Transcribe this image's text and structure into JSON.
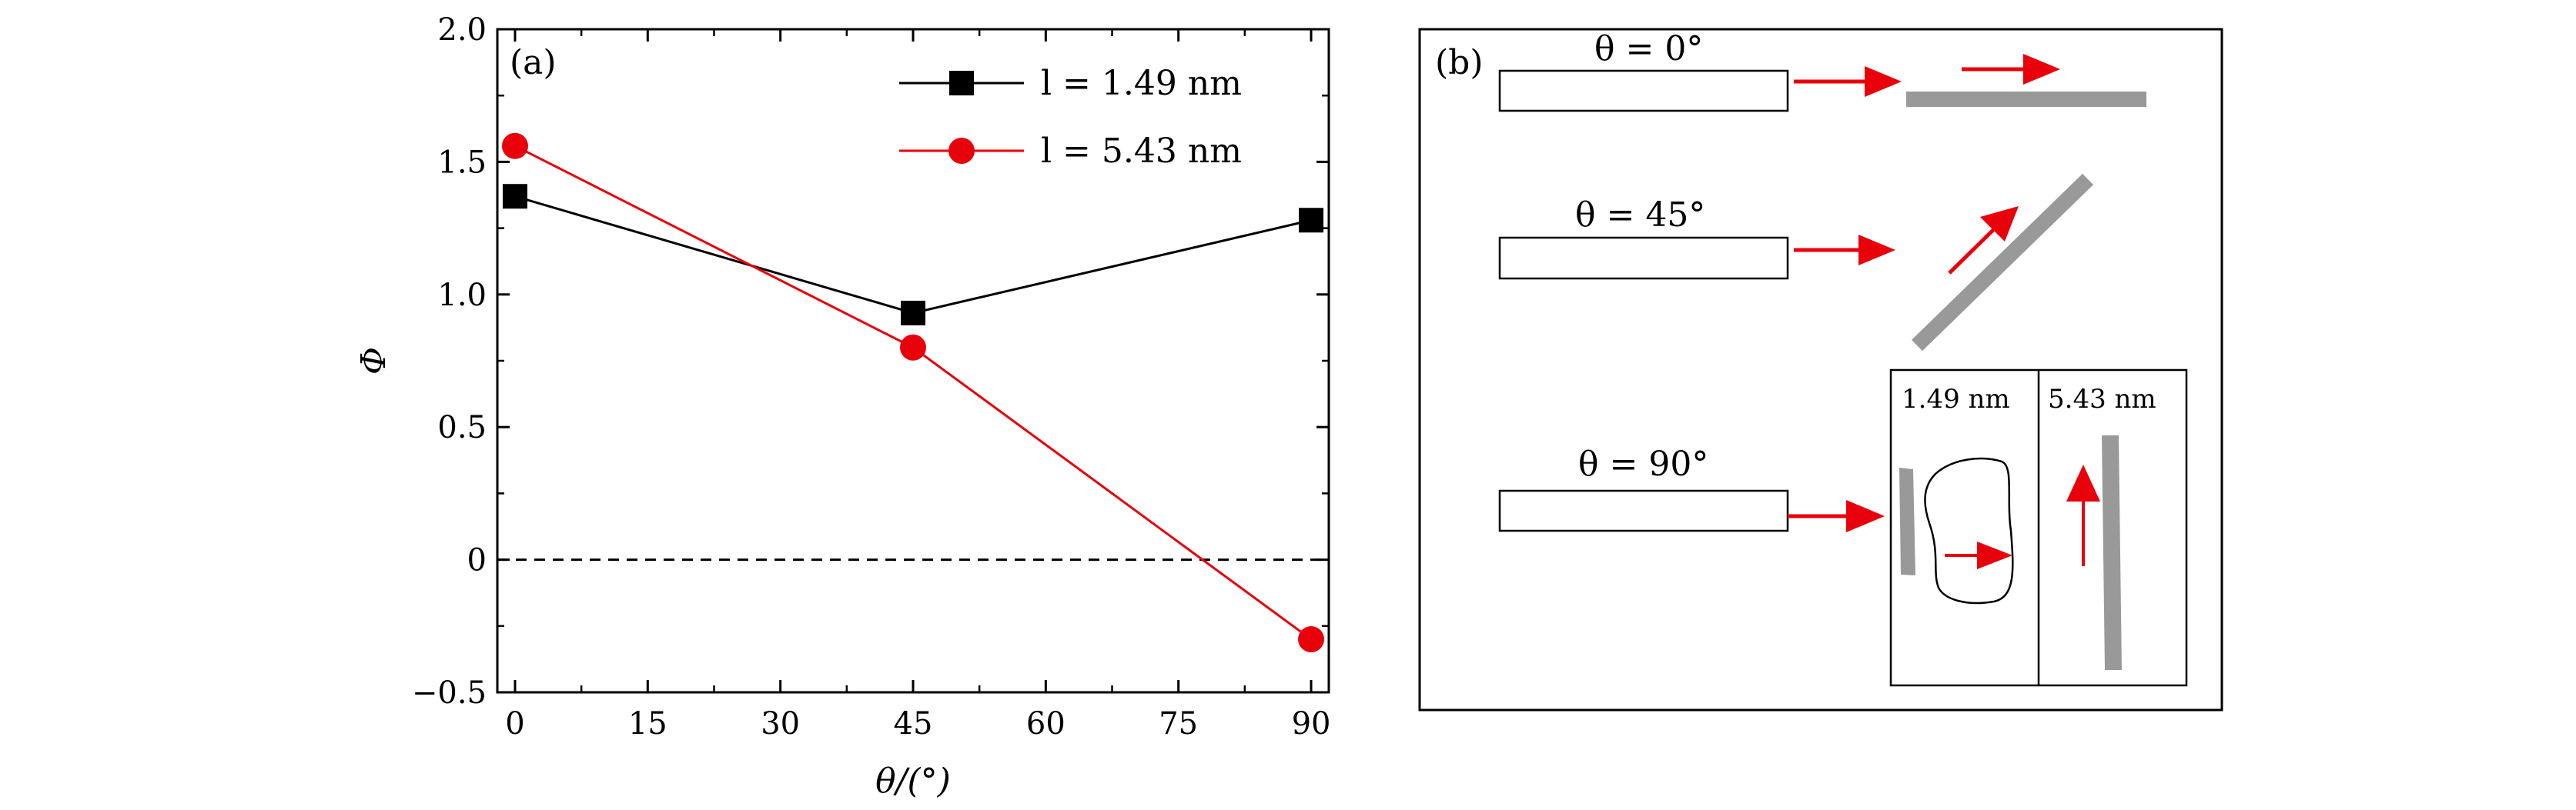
{
  "chart_data": [
    {
      "panel": "(a)",
      "type": "line",
      "x": [
        0,
        45,
        90
      ],
      "series": [
        {
          "name": "l = 1.49 nm",
          "marker": "square",
          "color": "#000000",
          "values": [
            1.37,
            0.93,
            1.28
          ]
        },
        {
          "name": "l = 5.43 nm",
          "marker": "circle",
          "color": "#e8000b",
          "values": [
            1.56,
            0.8,
            -0.3
          ]
        }
      ],
      "xlabel": "θ/(°)",
      "ylabel": "Φ",
      "xlim": [
        -2,
        92
      ],
      "ylim": [
        -0.5,
        2.0
      ],
      "xticks": [
        "0",
        "15",
        "30",
        "45",
        "60",
        "75",
        "90"
      ],
      "yticks": [
        "−0.5",
        "0",
        "0.5",
        "1.0",
        "1.5",
        "2.0"
      ],
      "reference_line": {
        "y": 0,
        "style": "dashed"
      },
      "legend": "top-right",
      "grid": false
    }
  ],
  "panel_b": {
    "label": "(b)",
    "rows": [
      {
        "theta_label": "θ = 0°"
      },
      {
        "theta_label": "θ = 45°"
      },
      {
        "theta_label": "θ = 90°"
      }
    ],
    "inset": {
      "left_label": "1.49 nm",
      "right_label": "5.43 nm"
    },
    "colors": {
      "arrow": "#e8000b",
      "rod": "#999999"
    }
  }
}
